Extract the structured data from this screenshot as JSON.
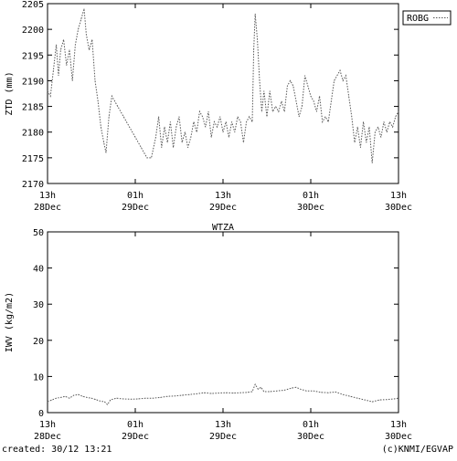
{
  "footer": {
    "created": "created: 30/12 13:21",
    "credit": "(c)KNMI/EGVAP"
  },
  "colors": {
    "axis": "#000000",
    "series": "#555555",
    "background": "#ffffff"
  },
  "chart_data": [
    {
      "type": "line",
      "title": "",
      "xlabel": "",
      "ylabel": "ZTD (mm)",
      "xlim": [
        0,
        48
      ],
      "ylim": [
        2170,
        2205
      ],
      "grid": false,
      "legend": {
        "placement": "top-right",
        "entries": [
          "ROBG"
        ]
      },
      "yticks": [
        2170,
        2175,
        2180,
        2185,
        2190,
        2195,
        2200,
        2205
      ],
      "xticks": [
        {
          "value": 0,
          "hour": "13h",
          "date": "28Dec"
        },
        {
          "value": 12,
          "hour": "01h",
          "date": "29Dec"
        },
        {
          "value": 24,
          "hour": "13h",
          "date": "29Dec"
        },
        {
          "value": 36,
          "hour": "01h",
          "date": "30Dec"
        },
        {
          "value": 48,
          "hour": "13h",
          "date": "30Dec"
        }
      ],
      "series": [
        {
          "name": "ROBG",
          "points": [
            [
              0.0,
              2188
            ],
            [
              0.4,
              2187
            ],
            [
              0.8,
              2192
            ],
            [
              1.2,
              2197
            ],
            [
              1.5,
              2191
            ],
            [
              1.8,
              2196
            ],
            [
              2.2,
              2198
            ],
            [
              2.6,
              2193
            ],
            [
              3.0,
              2196
            ],
            [
              3.4,
              2190
            ],
            [
              3.8,
              2197
            ],
            [
              4.2,
              2200
            ],
            [
              4.6,
              2202
            ],
            [
              5.0,
              2204
            ],
            [
              5.3,
              2199
            ],
            [
              5.7,
              2196
            ],
            [
              6.1,
              2198
            ],
            [
              6.5,
              2190
            ],
            [
              6.9,
              2186
            ],
            [
              7.3,
              2181
            ],
            [
              7.7,
              2178
            ],
            [
              8.0,
              2176
            ],
            [
              8.4,
              2183
            ],
            [
              8.8,
              2187
            ],
            [
              9.6,
              2185
            ],
            [
              10.4,
              2183
            ],
            [
              11.2,
              2181
            ],
            [
              12.0,
              2179
            ],
            [
              12.8,
              2177
            ],
            [
              13.6,
              2175
            ],
            [
              14.2,
              2175
            ],
            [
              14.8,
              2179
            ],
            [
              15.2,
              2183
            ],
            [
              15.6,
              2177
            ],
            [
              16.0,
              2181
            ],
            [
              16.4,
              2178
            ],
            [
              16.8,
              2182
            ],
            [
              17.2,
              2177
            ],
            [
              17.6,
              2181
            ],
            [
              18.0,
              2183
            ],
            [
              18.4,
              2178
            ],
            [
              18.8,
              2180
            ],
            [
              19.2,
              2177
            ],
            [
              19.6,
              2179
            ],
            [
              20.0,
              2182
            ],
            [
              20.4,
              2180
            ],
            [
              20.8,
              2184
            ],
            [
              21.2,
              2183
            ],
            [
              21.6,
              2181
            ],
            [
              22.0,
              2184
            ],
            [
              22.4,
              2179
            ],
            [
              22.8,
              2182
            ],
            [
              23.2,
              2181
            ],
            [
              23.6,
              2183
            ],
            [
              24.0,
              2180
            ],
            [
              24.4,
              2182
            ],
            [
              24.8,
              2179
            ],
            [
              25.2,
              2182
            ],
            [
              25.6,
              2180
            ],
            [
              26.0,
              2183
            ],
            [
              26.4,
              2182
            ],
            [
              26.8,
              2178
            ],
            [
              27.2,
              2182
            ],
            [
              27.6,
              2183
            ],
            [
              28.0,
              2182
            ],
            [
              28.2,
              2196
            ],
            [
              28.4,
              2203
            ],
            [
              28.7,
              2198
            ],
            [
              29.0,
              2190
            ],
            [
              29.3,
              2184
            ],
            [
              29.6,
              2188
            ],
            [
              30.0,
              2183
            ],
            [
              30.4,
              2188
            ],
            [
              30.8,
              2184
            ],
            [
              31.2,
              2185
            ],
            [
              31.6,
              2184
            ],
            [
              32.0,
              2186
            ],
            [
              32.4,
              2184
            ],
            [
              32.8,
              2189
            ],
            [
              33.2,
              2190
            ],
            [
              33.6,
              2189
            ],
            [
              34.0,
              2186
            ],
            [
              34.4,
              2183
            ],
            [
              34.8,
              2185
            ],
            [
              35.2,
              2191
            ],
            [
              35.6,
              2189
            ],
            [
              36.0,
              2187
            ],
            [
              36.4,
              2186
            ],
            [
              36.8,
              2184
            ],
            [
              37.2,
              2187
            ],
            [
              37.6,
              2182
            ],
            [
              38.0,
              2183
            ],
            [
              38.4,
              2182
            ],
            [
              38.8,
              2186
            ],
            [
              39.2,
              2190
            ],
            [
              39.6,
              2191
            ],
            [
              40.0,
              2192
            ],
            [
              40.4,
              2190
            ],
            [
              40.8,
              2191
            ],
            [
              41.2,
              2187
            ],
            [
              41.6,
              2183
            ],
            [
              42.0,
              2178
            ],
            [
              42.4,
              2181
            ],
            [
              42.8,
              2177
            ],
            [
              43.2,
              2182
            ],
            [
              43.6,
              2178
            ],
            [
              44.0,
              2181
            ],
            [
              44.4,
              2174
            ],
            [
              44.8,
              2180
            ],
            [
              45.2,
              2181
            ],
            [
              45.6,
              2179
            ],
            [
              46.0,
              2182
            ],
            [
              46.4,
              2180
            ],
            [
              46.8,
              2182
            ],
            [
              47.2,
              2181
            ],
            [
              47.6,
              2183
            ],
            [
              48.0,
              2184
            ]
          ]
        }
      ]
    },
    {
      "type": "line",
      "title": "WTZA",
      "xlabel": "",
      "ylabel": "IWV (kg/m2)",
      "xlim": [
        0,
        48
      ],
      "ylim": [
        0,
        50
      ],
      "grid": false,
      "yticks": [
        0,
        10,
        20,
        30,
        40,
        50
      ],
      "xticks": [
        {
          "value": 0,
          "hour": "13h",
          "date": "28Dec"
        },
        {
          "value": 12,
          "hour": "01h",
          "date": "29Dec"
        },
        {
          "value": 24,
          "hour": "13h",
          "date": "29Dec"
        },
        {
          "value": 36,
          "hour": "01h",
          "date": "30Dec"
        },
        {
          "value": 48,
          "hour": "13h",
          "date": "30Dec"
        }
      ],
      "series": [
        {
          "name": "",
          "points": [
            [
              0.0,
              3.0
            ],
            [
              0.6,
              3.5
            ],
            [
              1.2,
              4.0
            ],
            [
              1.8,
              4.2
            ],
            [
              2.4,
              4.5
            ],
            [
              3.0,
              4.0
            ],
            [
              3.6,
              4.8
            ],
            [
              4.2,
              5.0
            ],
            [
              4.8,
              4.5
            ],
            [
              5.4,
              4.2
            ],
            [
              6.0,
              4.0
            ],
            [
              6.6,
              3.6
            ],
            [
              7.2,
              3.2
            ],
            [
              7.8,
              3.0
            ],
            [
              8.2,
              2.2
            ],
            [
              8.6,
              3.5
            ],
            [
              9.4,
              4.0
            ],
            [
              10.4,
              3.8
            ],
            [
              11.4,
              3.7
            ],
            [
              12.4,
              3.8
            ],
            [
              13.4,
              4.0
            ],
            [
              14.4,
              4.0
            ],
            [
              15.4,
              4.2
            ],
            [
              16.4,
              4.5
            ],
            [
              17.4,
              4.6
            ],
            [
              18.4,
              4.8
            ],
            [
              19.4,
              5.0
            ],
            [
              20.4,
              5.2
            ],
            [
              21.4,
              5.5
            ],
            [
              22.4,
              5.3
            ],
            [
              23.4,
              5.4
            ],
            [
              24.4,
              5.5
            ],
            [
              25.4,
              5.4
            ],
            [
              26.4,
              5.5
            ],
            [
              27.4,
              5.6
            ],
            [
              28.0,
              5.8
            ],
            [
              28.4,
              7.8
            ],
            [
              28.8,
              6.5
            ],
            [
              29.2,
              7.0
            ],
            [
              29.6,
              5.8
            ],
            [
              30.4,
              5.8
            ],
            [
              31.4,
              6.0
            ],
            [
              32.4,
              6.2
            ],
            [
              33.4,
              6.8
            ],
            [
              34.0,
              7.0
            ],
            [
              34.6,
              6.5
            ],
            [
              35.4,
              6.0
            ],
            [
              36.4,
              6.0
            ],
            [
              37.4,
              5.6
            ],
            [
              38.4,
              5.5
            ],
            [
              39.4,
              5.7
            ],
            [
              40.4,
              5.0
            ],
            [
              41.4,
              4.5
            ],
            [
              42.4,
              4.0
            ],
            [
              43.4,
              3.5
            ],
            [
              44.4,
              3.0
            ],
            [
              45.4,
              3.5
            ],
            [
              46.4,
              3.6
            ],
            [
              47.4,
              3.8
            ],
            [
              48.0,
              4.0
            ]
          ]
        }
      ]
    }
  ]
}
